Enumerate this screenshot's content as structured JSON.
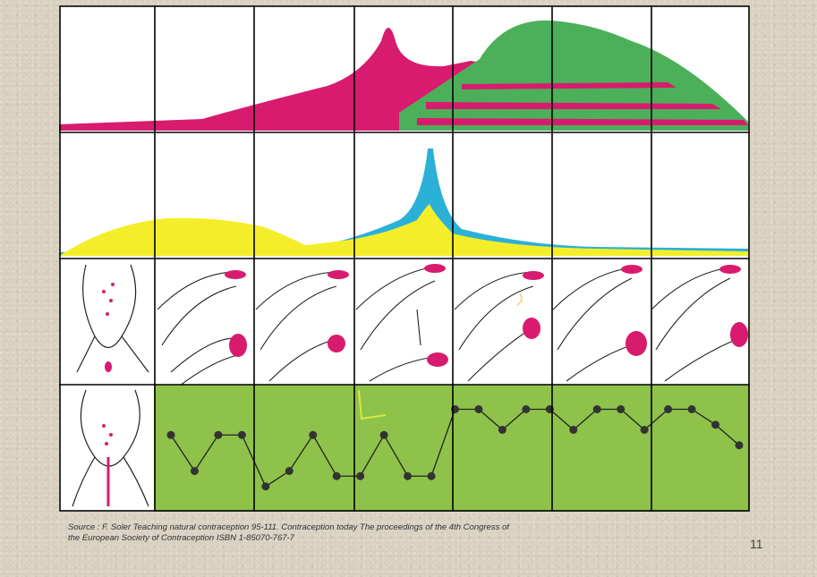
{
  "source": {
    "line1": "Source  :  F. Soler Teaching natural contraception 95-111. Contraception today The proceedings of the 4th Congress of",
    "line2": "the European Society of Contraception ISBN 1-85070-767-7"
  },
  "page_number": "11",
  "colors": {
    "magenta": "#d81b6e",
    "green": "#4caf5a",
    "yellow": "#f4ee2a",
    "blue": "#2bb0d8",
    "chart_bg": "#8ec24a",
    "grid": "#000000"
  },
  "temperature_points": [
    0.35,
    0.7,
    0.35,
    0.35,
    0.85,
    0.7,
    0.35,
    0.75,
    0.75,
    0.35,
    0.75,
    0.75,
    0.1,
    0.1,
    0.3,
    0.1,
    0.1,
    0.3,
    0.1,
    0.1,
    0.3,
    0.1,
    0.1,
    0.25,
    0.45
  ]
}
